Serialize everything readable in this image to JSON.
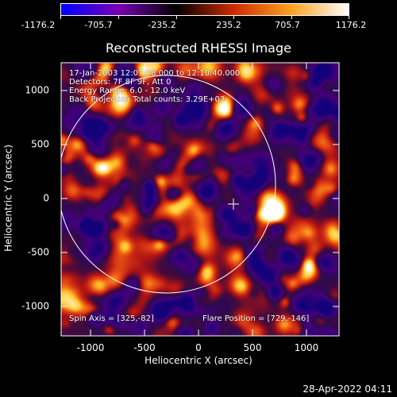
{
  "colorbar": {
    "gradient_colors": [
      "#0000ff",
      "#7800b4",
      "#000000",
      "#cc2a00",
      "#ffa020",
      "#ffffff"
    ],
    "tick_labels": [
      "-1176.2",
      "-705.7",
      "-235.2",
      "235.2",
      "705.7",
      "1176.2"
    ]
  },
  "title": "Reconstructed RHESSI Image",
  "annotations": {
    "time_range": "17-Jan-2003 12:07:08.000 to 12:10:40.000",
    "detectors": "Detectors: 7F 8F 9F, Att 0",
    "energy_range": "Energy Range: 6.0 - 12.0 keV",
    "method_counts": "Back Projection    Total counts: 3.29E+03",
    "spin_axis": "Spin Axis = [325,-82]",
    "flare_position": "Flare Position = [729,-146]"
  },
  "axes": {
    "xlabel": "Heliocentric X (arcsec)",
    "ylabel": "Heliocentric Y (arcsec)",
    "x_ticks": [
      "-1000",
      "-500",
      "0",
      "500",
      "1000"
    ],
    "y_ticks": [
      "1000",
      "500",
      "0",
      "-500",
      "-1000"
    ]
  },
  "overlay": {
    "limb_color": "#ffffff",
    "spin_axis_marker_color": "#ffffff"
  },
  "footer": {
    "timestamp": "28-Apr-2022 04:11"
  }
}
